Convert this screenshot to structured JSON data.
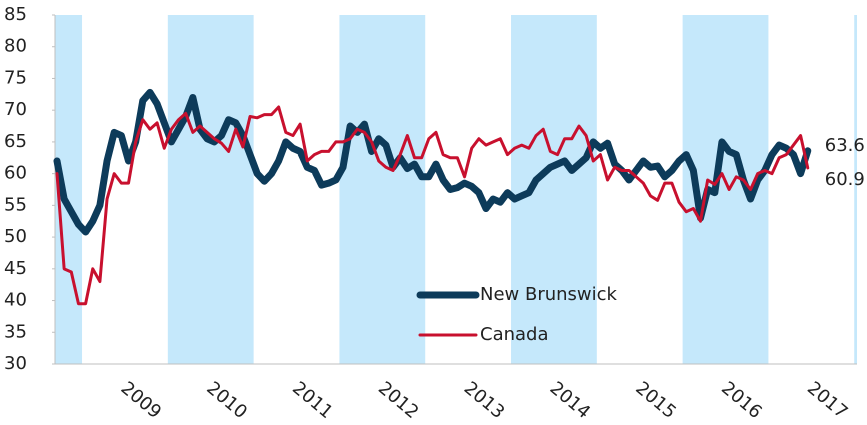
{
  "chart_data": {
    "type": "line",
    "categories": [
      null,
      null,
      null,
      null,
      null,
      null,
      null,
      "2009",
      null,
      null,
      null,
      null,
      null,
      null,
      null,
      null,
      null,
      null,
      null,
      "2010",
      null,
      null,
      null,
      null,
      null,
      null,
      null,
      null,
      null,
      null,
      null,
      "2011",
      null,
      null,
      null,
      null,
      null,
      null,
      null,
      null,
      null,
      null,
      null,
      "2012",
      null,
      null,
      null,
      null,
      null,
      null,
      null,
      null,
      null,
      null,
      null,
      "2013",
      null,
      null,
      null,
      null,
      null,
      null,
      null,
      null,
      null,
      null,
      null,
      "2014",
      null,
      null,
      null,
      null,
      null,
      null,
      null,
      null,
      null,
      null,
      null,
      "2015",
      null,
      null,
      null,
      null,
      null,
      null,
      null,
      null,
      null,
      null,
      null,
      "2016",
      null,
      null,
      null,
      null,
      null,
      null,
      null,
      null,
      null,
      null,
      null,
      "2017",
      null,
      null
    ],
    "series": [
      {
        "name": "New Brunswick",
        "color": "#0d3b5a",
        "values": [
          62,
          56,
          54,
          52,
          50.8,
          52.5,
          55,
          62,
          66.5,
          66,
          62,
          65,
          71.5,
          72.8,
          71,
          68,
          65,
          67,
          69,
          72,
          67,
          65.5,
          65,
          66,
          68.5,
          68,
          66,
          63,
          60,
          58.8,
          60,
          62,
          65,
          64,
          63.5,
          61,
          60.5,
          58.2,
          58.5,
          59,
          61,
          67.5,
          66.5,
          67.8,
          63.5,
          65.5,
          64.5,
          61,
          62.5,
          60.8,
          61.5,
          59.5,
          59.5,
          61.5,
          59,
          57.5,
          57.8,
          58.5,
          58,
          57,
          54.5,
          56,
          55.5,
          57,
          56,
          56.5,
          57,
          59,
          60,
          61,
          61.5,
          62,
          60.5,
          61.5,
          62.5,
          65,
          64,
          64.8,
          61.5,
          60.5,
          59,
          60.5,
          62,
          61,
          61.2,
          59.5,
          60.5,
          62,
          63,
          60.5,
          53,
          57.5,
          57,
          65,
          63.5,
          63,
          59,
          56,
          59,
          60.5,
          63,
          64.5,
          64,
          63,
          60,
          63.6
        ]
      },
      {
        "name": "Canada",
        "color": "#c8102e",
        "values": [
          60,
          45,
          44.5,
          39.5,
          39.5,
          45,
          43,
          56,
          60,
          58.5,
          58.5,
          65,
          68.5,
          67,
          68,
          64,
          67,
          68.5,
          69.5,
          66.5,
          67.5,
          66.5,
          65.5,
          64.8,
          63.5,
          67,
          64.2,
          69,
          68.8,
          69.3,
          69.3,
          70.5,
          66.5,
          66,
          67.8,
          62,
          63,
          63.5,
          63.5,
          65,
          65,
          65.5,
          67,
          66.5,
          65,
          62,
          61,
          60.5,
          63,
          66,
          62.5,
          62.5,
          65.5,
          66.5,
          63,
          62.5,
          62.5,
          59.5,
          64,
          65.5,
          64.5,
          65,
          65.5,
          63,
          64,
          64.5,
          64,
          66,
          67,
          63.5,
          63,
          65.5,
          65.5,
          67.5,
          66,
          62,
          63,
          59,
          61,
          60.5,
          60.5,
          59.5,
          58.5,
          56.5,
          55.8,
          58.5,
          58.5,
          55.5,
          54,
          54.5,
          52.5,
          59,
          58.3,
          60,
          57.5,
          59.5,
          59,
          57.5,
          60,
          60.5,
          60,
          62.5,
          63,
          64.5,
          66,
          60.9
        ]
      }
    ],
    "ylim": [
      30,
      85
    ],
    "yticks": [
      30,
      35,
      40,
      45,
      50,
      55,
      60,
      65,
      70,
      75,
      80,
      85
    ],
    "grid": false,
    "legend": "lower center",
    "end_labels": true,
    "band_color": "#c5e8fb"
  }
}
